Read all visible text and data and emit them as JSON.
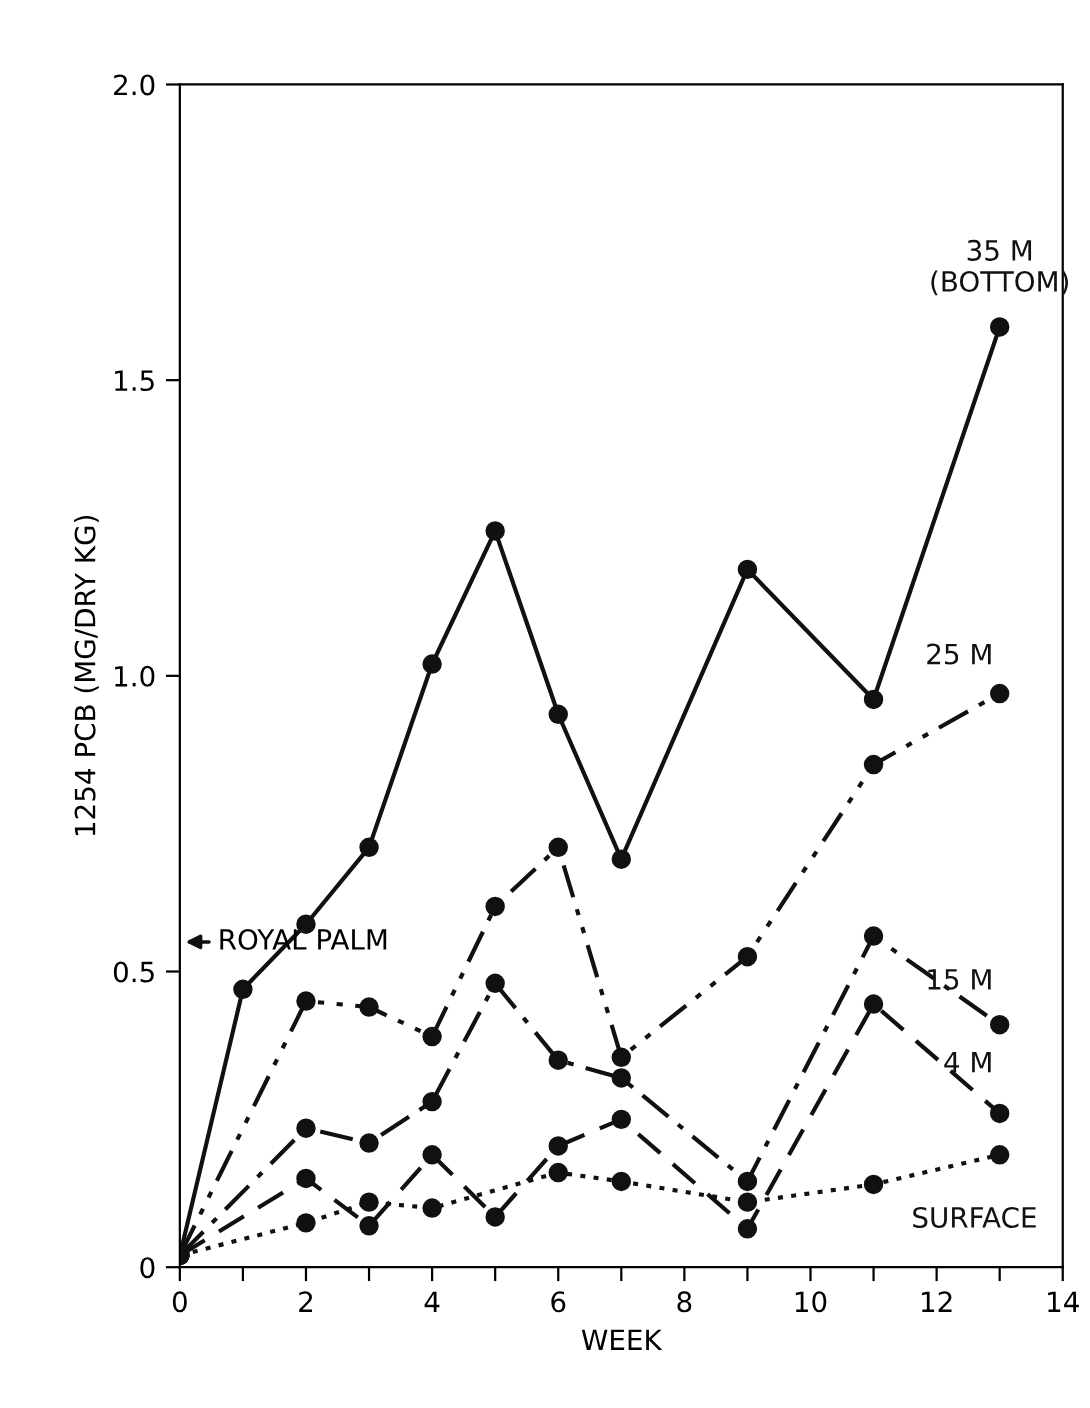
{
  "chart_data": {
    "type": "line",
    "xlabel": "WEEK",
    "ylabel": "1254 PCB (MG/DRY KG)",
    "xlim": [
      0,
      14
    ],
    "ylim": [
      0,
      2.0
    ],
    "xticks": [
      0,
      {
        "value": 1,
        "label": null
      },
      2,
      {
        "value": 3,
        "label": null
      },
      4,
      {
        "value": 5,
        "label": null
      },
      6,
      {
        "value": 7,
        "label": null
      },
      8,
      {
        "value": 9,
        "label": null
      },
      10,
      {
        "value": 11,
        "label": null
      },
      12,
      {
        "value": 13,
        "label": null
      },
      14
    ],
    "yticks": [
      0,
      0.5,
      {
        "value": 1.0,
        "label": "1.0"
      },
      1.5,
      {
        "value": 2.0,
        "label": "2.0"
      }
    ],
    "grid": false,
    "legend": false,
    "marker": "circle",
    "series": [
      {
        "name": "35 M\n(BOTTOM)",
        "color": "#111111",
        "line_style": "solid",
        "x": [
          0,
          1,
          2,
          3,
          4,
          5,
          6,
          7,
          9,
          11,
          13
        ],
        "values": [
          0.02,
          0.47,
          0.58,
          0.71,
          1.02,
          1.245,
          0.935,
          0.69,
          1.18,
          0.96,
          1.59
        ]
      },
      {
        "name": "25 M",
        "color": "#111111",
        "line_style": "dashdotdot",
        "x": [
          0,
          2,
          3,
          4,
          5,
          6,
          7,
          9,
          11,
          13
        ],
        "values": [
          0.02,
          0.45,
          0.44,
          0.39,
          0.61,
          0.71,
          0.355,
          0.525,
          0.85,
          0.97
        ]
      },
      {
        "name": "15 M",
        "color": "#111111",
        "line_style": "dashdot",
        "x": [
          0,
          2,
          3,
          4,
          5,
          6,
          7,
          9,
          11,
          13
        ],
        "values": [
          0.02,
          0.235,
          0.21,
          0.28,
          0.48,
          0.35,
          0.32,
          0.145,
          0.56,
          0.41
        ]
      },
      {
        "name": "4 M",
        "color": "#111111",
        "line_style": "dashed",
        "x": [
          0,
          2,
          3,
          4,
          5,
          6,
          7,
          9,
          11,
          13
        ],
        "values": [
          0.02,
          0.15,
          0.07,
          0.19,
          0.085,
          0.205,
          0.25,
          0.065,
          0.445,
          0.26
        ]
      },
      {
        "name": "SURFACE",
        "color": "#111111",
        "line_style": "dotted",
        "x": [
          0,
          2,
          3,
          4,
          6,
          7,
          9,
          11,
          13
        ],
        "values": [
          0.02,
          0.075,
          0.11,
          0.1,
          0.16,
          0.145,
          0.11,
          0.14,
          0.19
        ]
      }
    ],
    "annotations": [
      "ROYAL PALM"
    ]
  }
}
